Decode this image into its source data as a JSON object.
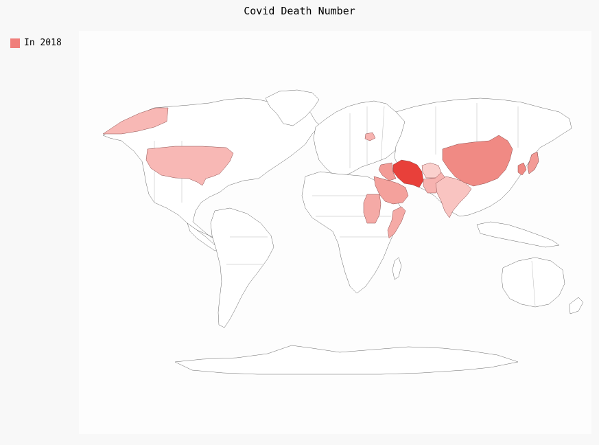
{
  "title": "Covid Death Number",
  "legend": {
    "label": "In 2018",
    "color": "#f07f7b"
  },
  "map_data": {
    "type": "choropleth",
    "series": "In 2018",
    "highlighted_countries": [
      {
        "country": "Iran",
        "intensity": 1.0,
        "color": "#e8403a"
      },
      {
        "country": "China",
        "intensity": 0.75,
        "color": "#f08a84"
      },
      {
        "country": "South Korea",
        "intensity": 0.75,
        "color": "#f08a84"
      },
      {
        "country": "Japan",
        "intensity": 0.6,
        "color": "#f39b96"
      },
      {
        "country": "Iraq",
        "intensity": 0.6,
        "color": "#f39b96"
      },
      {
        "country": "Saudi Arabia",
        "intensity": 0.55,
        "color": "#f4a19c"
      },
      {
        "country": "Sudan",
        "intensity": 0.5,
        "color": "#f5aaa6"
      },
      {
        "country": "Somalia",
        "intensity": 0.5,
        "color": "#f5aaa6"
      },
      {
        "country": "United States",
        "intensity": 0.45,
        "color": "#f8b8b5"
      },
      {
        "country": "Pakistan",
        "intensity": 0.4,
        "color": "#f7b3b0"
      },
      {
        "country": "India",
        "intensity": 0.35,
        "color": "#f9c4c1"
      },
      {
        "country": "Afghanistan",
        "intensity": 0.3,
        "color": "#fad0cd"
      },
      {
        "country": "Alaska (United States)",
        "intensity": 0.45,
        "color": "#f8b8b5"
      },
      {
        "country": "Belarus",
        "intensity": 0.4,
        "color": "#f7b3b0"
      }
    ]
  }
}
